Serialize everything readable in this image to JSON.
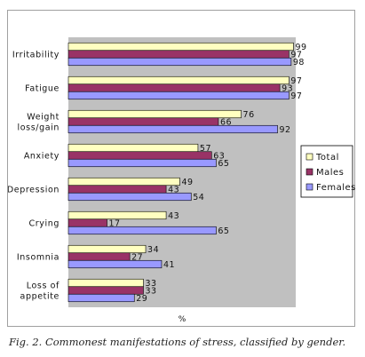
{
  "chart_data": {
    "type": "bar",
    "orientation": "horizontal",
    "categories": [
      [
        "Irritability"
      ],
      [
        "Fatigue"
      ],
      [
        "Weight",
        "loss/gain"
      ],
      [
        "Anxiety"
      ],
      [
        "Depression"
      ],
      [
        "Crying"
      ],
      [
        "Insomnia"
      ],
      [
        "Loss of",
        "appetite"
      ]
    ],
    "series": [
      {
        "name": "Total",
        "color": "#ffffc0",
        "values": [
          99,
          97,
          76,
          57,
          49,
          43,
          34,
          33
        ]
      },
      {
        "name": "Males",
        "color": "#993366",
        "values": [
          97,
          93,
          66,
          63,
          43,
          17,
          27,
          33
        ]
      },
      {
        "name": "Females",
        "color": "#9999ff",
        "values": [
          98,
          97,
          92,
          65,
          54,
          65,
          41,
          29
        ]
      }
    ],
    "xlabel": "%",
    "xlim": [
      0,
      100
    ],
    "plot_background": "#c0c0c0",
    "legend_position": "right",
    "grid": false
  },
  "caption": "Fig. 2. Commonest manifestations of stress, classified by gender."
}
